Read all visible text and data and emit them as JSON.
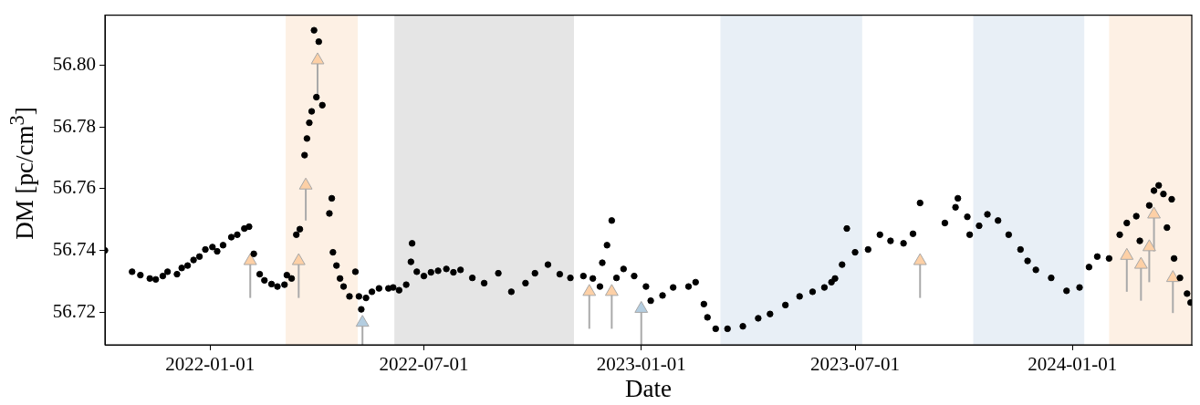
{
  "chart_data": {
    "type": "scatter",
    "xlabel": "Date",
    "ylabel": "DM [pc/cm$^{3}$]",
    "xlim": [
      "2021-10-04",
      "2024-04-11"
    ],
    "xticks": [
      "2022-01-01",
      "2022-07-01",
      "2023-01-01",
      "2023-07-01",
      "2024-01-01"
    ],
    "ylim": [
      56.7094,
      56.8163
    ],
    "yticks": [
      56.72,
      56.74,
      56.76,
      56.78,
      {
        "value": 56.8,
        "label": "56.80"
      }
    ],
    "marker": "circle",
    "bands": [
      {
        "axis": "x",
        "from": "2022-03-06",
        "to": "2022-05-06",
        "color": "#fdf0e4"
      },
      {
        "axis": "x",
        "from": "2022-06-06",
        "to": "2022-11-05",
        "color": "#e5e5e5"
      },
      {
        "axis": "x",
        "from": "2023-03-09",
        "to": "2023-07-07",
        "color": "#e8eff6"
      },
      {
        "axis": "x",
        "from": "2023-10-09",
        "to": "2024-01-11",
        "color": "#e8eff6"
      },
      {
        "axis": "x",
        "from": "2024-02-01",
        "to": "2024-04-11",
        "color": "#fdf0e4"
      }
    ],
    "series": [
      {
        "color": "#000000",
        "x": [
          "2021-10-04",
          "2021-10-27",
          "2021-11-03",
          "2021-11-11",
          "2021-11-16",
          "2021-11-22",
          "2021-11-26",
          "2021-12-04",
          "2021-12-08",
          "2021-12-13",
          "2021-12-18",
          "2021-12-23",
          "2021-12-28",
          "2022-01-03",
          "2022-01-07",
          "2022-01-12",
          "2022-01-19",
          "2022-01-24",
          "2022-01-30",
          "2022-02-03",
          "2022-02-07",
          "2022-02-12",
          "2022-02-16",
          "2022-02-22",
          "2022-02-27",
          "2022-03-05",
          "2022-03-07",
          "2022-03-11",
          "2022-03-15",
          "2022-03-18",
          "2022-03-22",
          "2022-03-24",
          "2022-03-26",
          "2022-03-28",
          "2022-03-30",
          "2022-04-01",
          "2022-04-03",
          "2022-04-06",
          "2022-04-12",
          "2022-04-14",
          "2022-04-15",
          "2022-04-18",
          "2022-04-21",
          "2022-04-24",
          "2022-04-29",
          "2022-05-04",
          "2022-05-07",
          "2022-05-09",
          "2022-05-13",
          "2022-05-18",
          "2022-05-24",
          "2022-06-01",
          "2022-06-05",
          "2022-06-10",
          "2022-06-16",
          "2022-06-20",
          "2022-06-21",
          "2022-06-25",
          "2022-07-01",
          "2022-07-07",
          "2022-07-13",
          "2022-07-20",
          "2022-07-26",
          "2022-08-01",
          "2022-08-11",
          "2022-08-21",
          "2022-09-02",
          "2022-09-13",
          "2022-09-25",
          "2022-10-03",
          "2022-10-14",
          "2022-10-24",
          "2022-11-02",
          "2022-11-13",
          "2022-11-21",
          "2022-11-27",
          "2022-11-29",
          "2022-12-03",
          "2022-12-07",
          "2022-12-11",
          "2022-12-17",
          "2022-12-26",
          "2023-01-05",
          "2023-01-09",
          "2023-01-19",
          "2023-01-28",
          "2023-02-10",
          "2023-02-16",
          "2023-02-23",
          "2023-02-26",
          "2023-03-05",
          "2023-03-15",
          "2023-03-28",
          "2023-04-10",
          "2023-04-20",
          "2023-05-03",
          "2023-05-15",
          "2023-05-26",
          "2023-06-05",
          "2023-06-11",
          "2023-06-14",
          "2023-06-20",
          "2023-06-24",
          "2023-07-01",
          "2023-07-12",
          "2023-07-22",
          "2023-07-31",
          "2023-08-11",
          "2023-08-19",
          "2023-08-25",
          "2023-09-15",
          "2023-09-24",
          "2023-09-26",
          "2023-10-04",
          "2023-10-06",
          "2023-10-14",
          "2023-10-21",
          "2023-10-30",
          "2023-11-08",
          "2023-11-18",
          "2023-11-24",
          "2023-12-01",
          "2023-12-14",
          "2023-12-27",
          "2024-01-07",
          "2024-01-15",
          "2024-01-22",
          "2024-02-01",
          "2024-02-10",
          "2024-02-16",
          "2024-02-24",
          "2024-02-27",
          "2024-03-06",
          "2024-03-10",
          "2024-03-14",
          "2024-03-18",
          "2024-03-21",
          "2024-03-25",
          "2024-03-27",
          "2024-04-01",
          "2024-04-07",
          "2024-04-10"
        ],
        "values": [
          56.74,
          56.7331,
          56.732,
          56.7309,
          56.7306,
          56.7317,
          56.7331,
          56.7323,
          56.7343,
          56.7351,
          56.7369,
          56.738,
          56.7403,
          56.7411,
          56.7397,
          56.7417,
          56.7443,
          56.7451,
          56.7471,
          56.7477,
          56.7389,
          56.7323,
          56.7303,
          56.7291,
          56.7283,
          56.7289,
          56.732,
          56.7309,
          56.7451,
          56.7469,
          56.7709,
          56.7763,
          56.7814,
          56.7851,
          56.8114,
          56.7897,
          56.8077,
          56.7871,
          56.752,
          56.7569,
          56.7394,
          56.7351,
          56.7309,
          56.7283,
          56.7251,
          56.7331,
          56.7251,
          56.7209,
          56.7246,
          56.7266,
          56.7277,
          56.7277,
          56.728,
          56.7271,
          56.7289,
          56.7363,
          56.7423,
          56.7331,
          56.7317,
          56.7329,
          56.7334,
          56.734,
          56.7329,
          56.7337,
          56.7311,
          56.7294,
          56.7326,
          56.7266,
          56.7294,
          56.7326,
          56.7354,
          56.7323,
          56.7311,
          56.7317,
          56.7309,
          56.7283,
          56.736,
          56.7417,
          56.7497,
          56.7311,
          56.734,
          56.7317,
          56.7283,
          56.7237,
          56.7254,
          56.728,
          56.7283,
          56.7297,
          56.7226,
          56.7183,
          56.7146,
          56.7146,
          56.7154,
          56.718,
          56.7194,
          56.7223,
          56.7251,
          56.7266,
          56.728,
          56.7297,
          56.7309,
          56.7354,
          56.7471,
          56.7394,
          56.7403,
          56.7451,
          56.7431,
          56.7423,
          56.7454,
          56.7554,
          56.7489,
          56.754,
          56.7569,
          56.7509,
          56.7451,
          56.748,
          56.7517,
          56.7497,
          56.7451,
          56.7403,
          56.7366,
          56.7337,
          56.7311,
          56.7269,
          56.728,
          56.7346,
          56.738,
          56.7374,
          56.7451,
          56.7489,
          56.7511,
          56.7431,
          56.7546,
          56.7594,
          56.7611,
          56.7583,
          56.7474,
          56.7566,
          56.7374,
          56.7311,
          56.726,
          56.7231
        ]
      },
      {
        "color": "#fdd0a6",
        "marker": "triangle",
        "x": [
          "2022-02-04",
          "2022-03-17",
          "2022-03-23",
          "2022-04-02",
          "2022-11-18",
          "2022-12-07",
          "2023-08-25",
          "2024-02-16",
          "2024-02-28",
          "2024-03-06",
          "2024-03-10",
          "2024-03-26"
        ],
        "values": [
          56.7366,
          56.7366,
          56.7611,
          56.8017,
          56.7266,
          56.7266,
          56.7366,
          56.7383,
          56.7354,
          56.7411,
          56.7517,
          56.7311
        ],
        "errors": [
          [
            56.7246,
            56.7366
          ],
          [
            56.7246,
            56.7366
          ],
          [
            56.7497,
            56.7611
          ],
          [
            56.7897,
            56.8017
          ],
          [
            56.7146,
            56.7266
          ],
          [
            56.7146,
            56.7266
          ],
          [
            56.7246,
            56.7366
          ],
          [
            56.7266,
            56.7383
          ],
          [
            56.7237,
            56.7354
          ],
          [
            56.7297,
            56.7411
          ],
          [
            56.7397,
            56.7517
          ],
          [
            56.7197,
            56.7311
          ]
        ]
      },
      {
        "color": "#b3cde0",
        "marker": "triangle",
        "x": [
          "2022-05-10",
          "2023-01-01"
        ],
        "values": [
          56.7166,
          56.7211
        ],
        "errors": [
          [
            56.7094,
            56.7166
          ],
          [
            56.7094,
            56.7211
          ]
        ]
      }
    ]
  }
}
